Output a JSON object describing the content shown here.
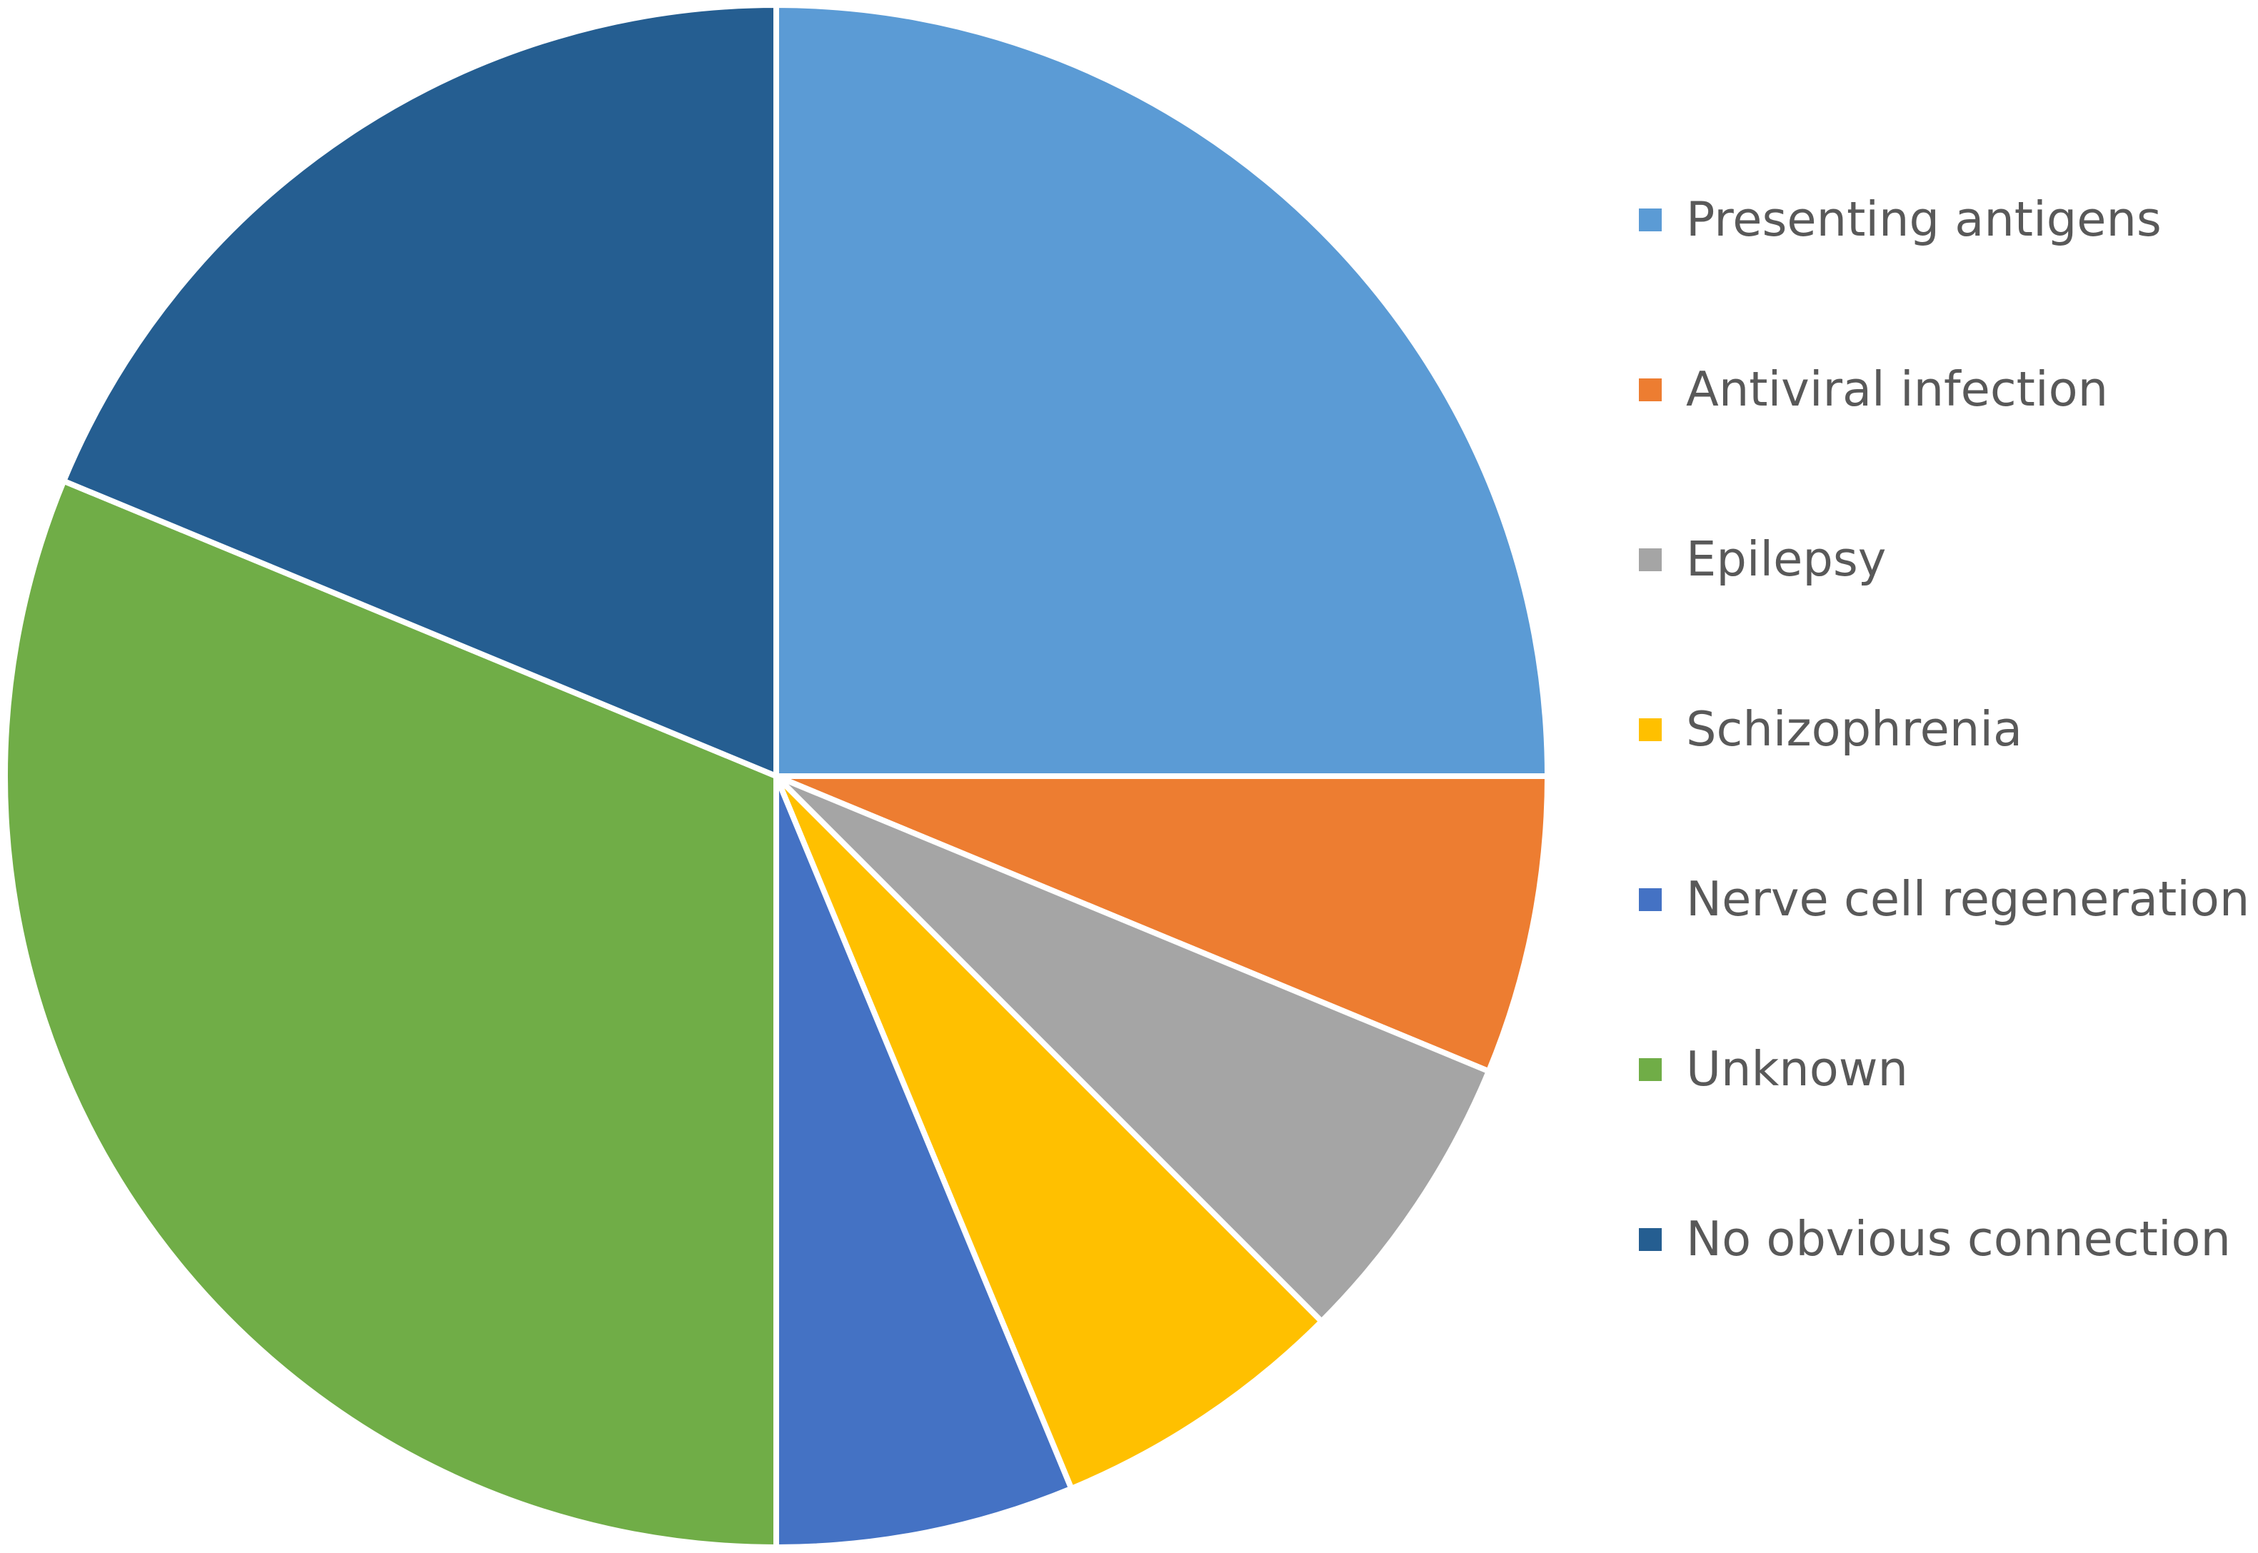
{
  "chart_data": {
    "type": "pie",
    "title": "",
    "start_angle_deg": 0,
    "direction": "clockwise",
    "legend_position": "right",
    "slices": [
      {
        "label": "Presenting antigens",
        "value": 25.0,
        "color": "#5B9BD5"
      },
      {
        "label": "Antiviral infection",
        "value": 6.25,
        "color": "#ED7D31"
      },
      {
        "label": "Epilepsy",
        "value": 6.25,
        "color": "#A5A5A5"
      },
      {
        "label": "Schizophrenia",
        "value": 6.25,
        "color": "#FFC000"
      },
      {
        "label": "Nerve cell regeneration",
        "value": 6.25,
        "color": "#4472C4"
      },
      {
        "label": "Unknown",
        "value": 31.25,
        "color": "#70AD47"
      },
      {
        "label": "No obvious connection",
        "value": 18.75,
        "color": "#255E91"
      }
    ]
  }
}
